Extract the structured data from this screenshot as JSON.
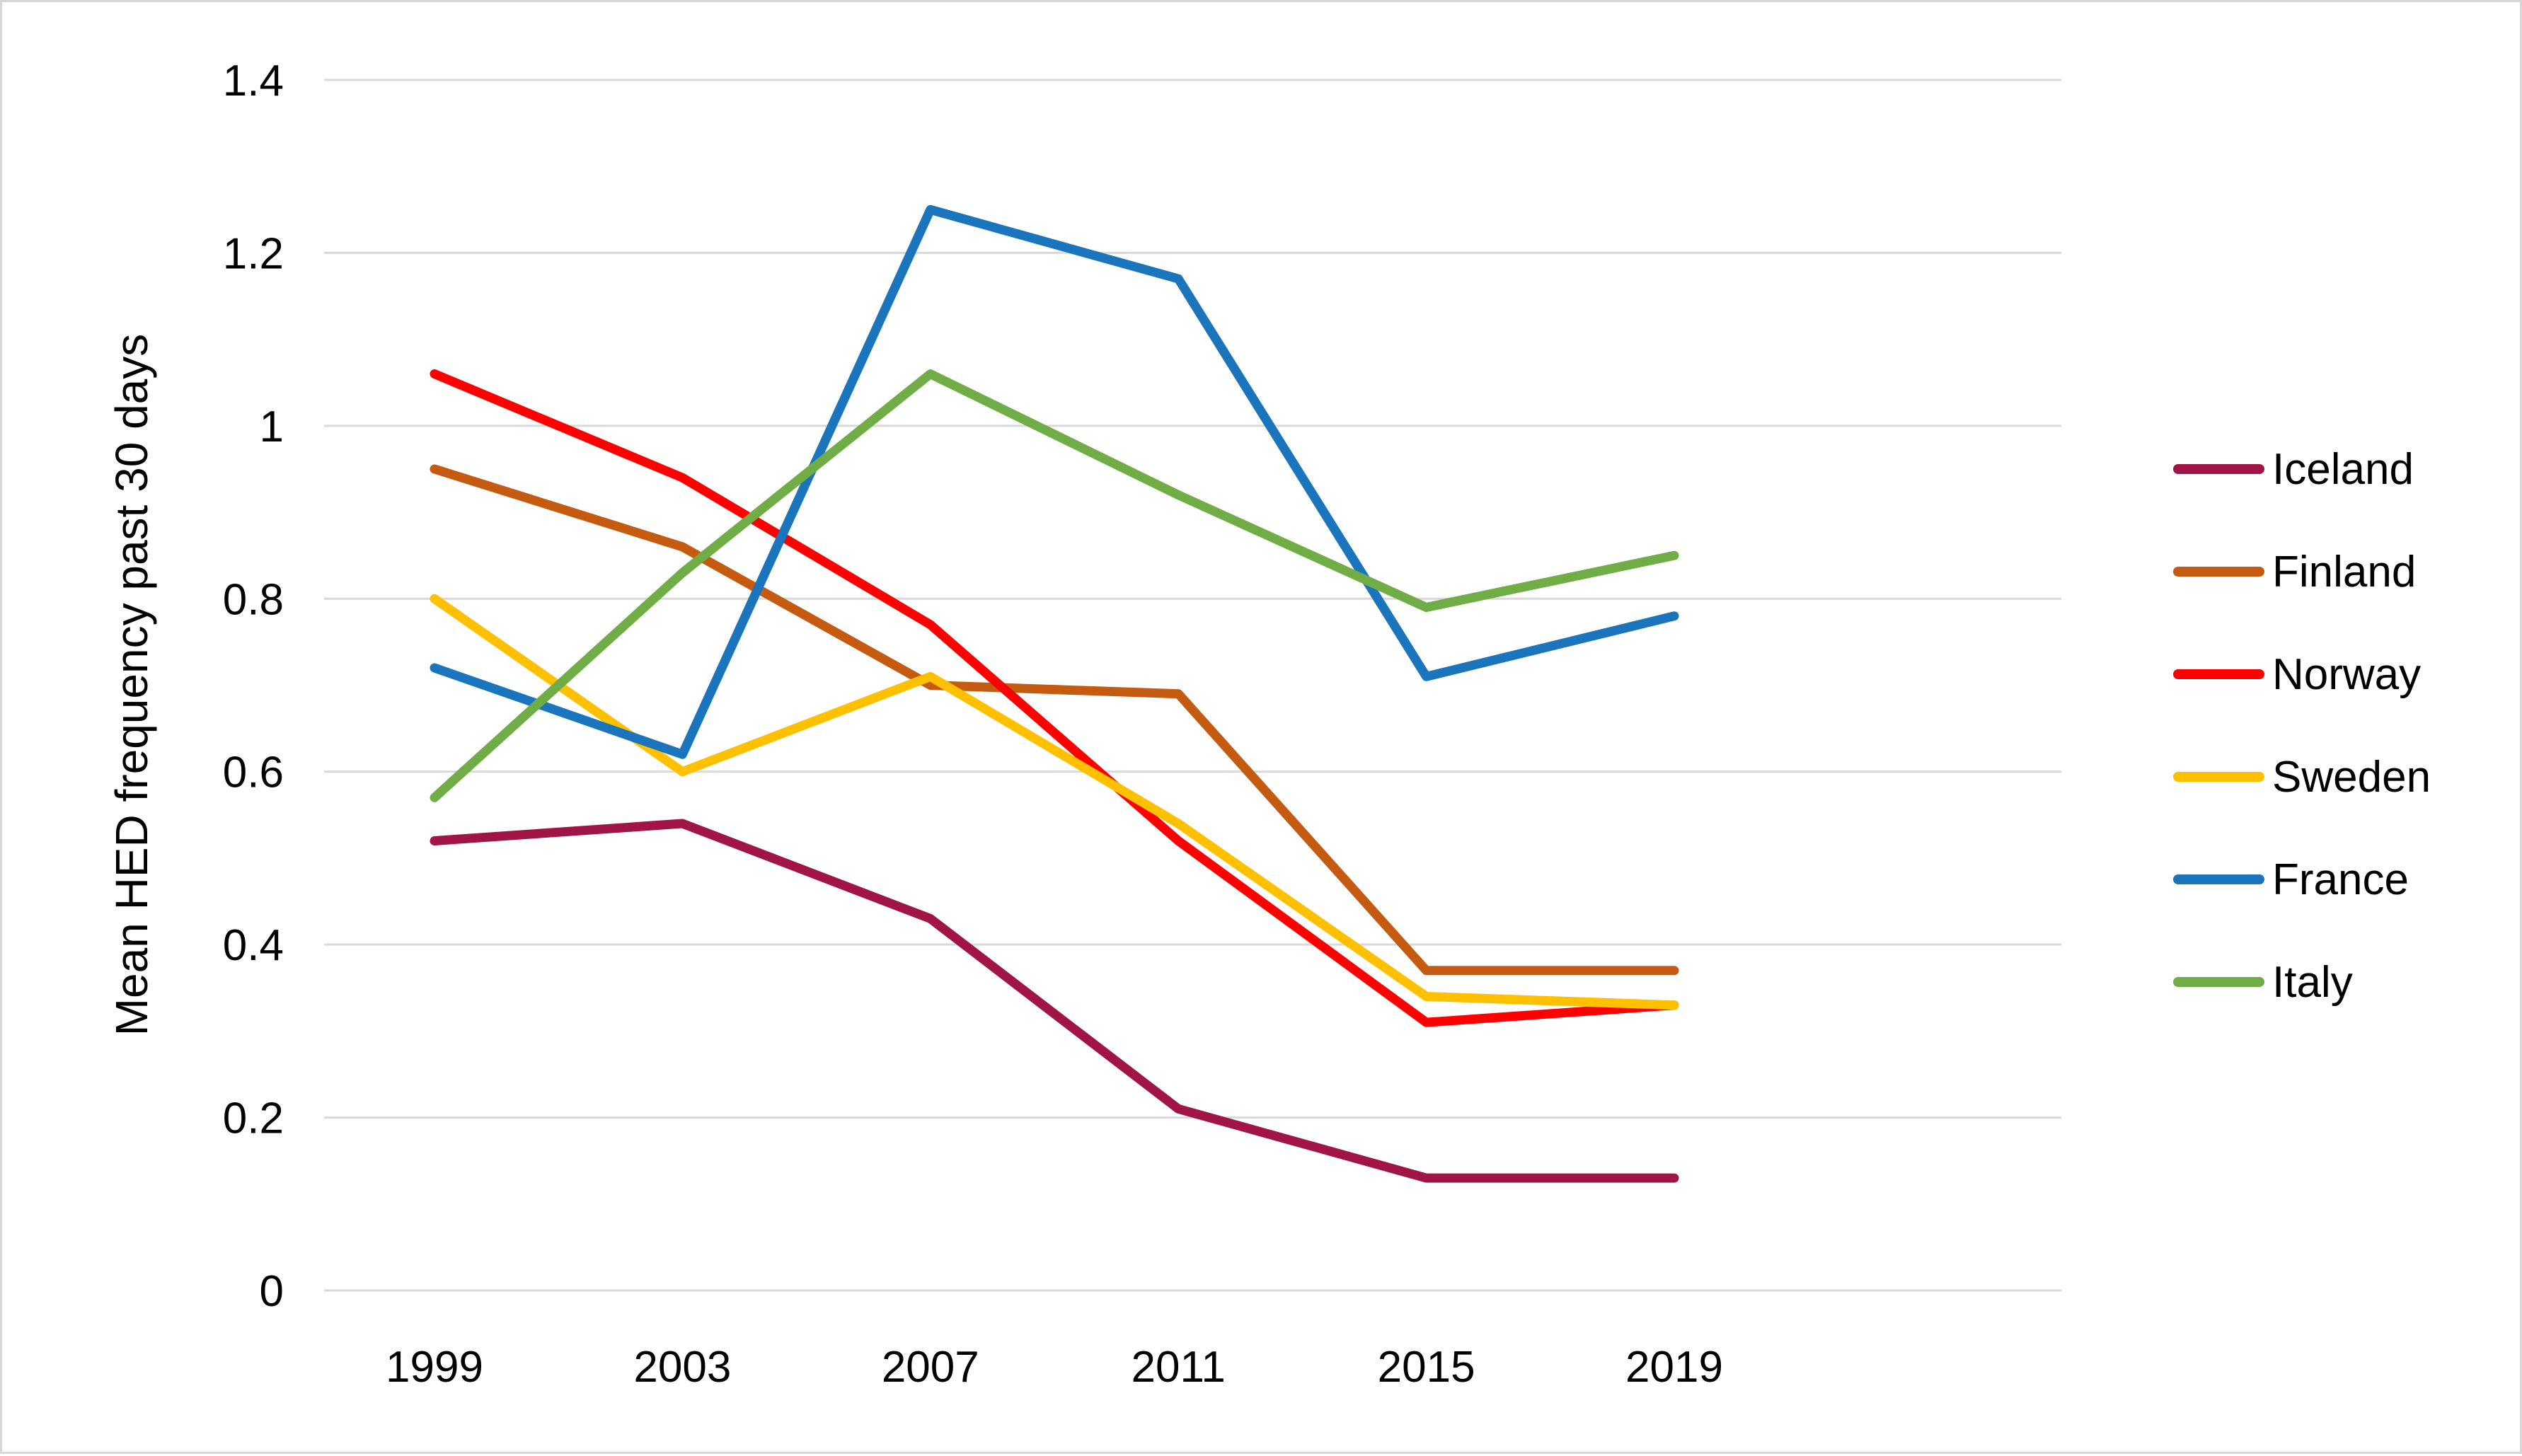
{
  "chart_data": {
    "type": "line",
    "title": "",
    "xlabel": "",
    "ylabel": "Mean HED frequency past 30 days",
    "x": [
      1999,
      2003,
      2007,
      2011,
      2015,
      2019
    ],
    "x_tick_labels": [
      "1999",
      "2003",
      "2007",
      "2011",
      "2015",
      "2019"
    ],
    "y_ticks": [
      0,
      0.2,
      0.4,
      0.6,
      0.8,
      1,
      1.2,
      1.4
    ],
    "y_tick_labels": [
      "0",
      "0.2",
      "0.4",
      "0.6",
      "0.8",
      "1",
      "1.2",
      "1.4"
    ],
    "ylim": [
      0,
      1.4
    ],
    "grid": true,
    "gridline_color": "#D9D9D9",
    "background_color": "#FFFFFF",
    "text_color": "#000000",
    "legend_position": "right",
    "legend": [
      "Iceland",
      "Finland",
      "Norway",
      "Sweden",
      "France",
      "Italy"
    ],
    "series": [
      {
        "name": "Iceland",
        "color": "#A01446",
        "values": [
          0.52,
          0.54,
          0.43,
          0.21,
          0.13,
          0.13
        ]
      },
      {
        "name": "Finland",
        "color": "#C55A11",
        "values": [
          0.95,
          0.86,
          0.7,
          0.69,
          0.37,
          0.37
        ]
      },
      {
        "name": "Norway",
        "color": "#FF0000",
        "values": [
          1.06,
          0.94,
          0.77,
          0.52,
          0.31,
          0.33
        ]
      },
      {
        "name": "Sweden",
        "color": "#FFC000",
        "values": [
          0.8,
          0.6,
          0.71,
          0.54,
          0.34,
          0.33
        ]
      },
      {
        "name": "France",
        "color": "#1B75BC",
        "values": [
          0.72,
          0.62,
          1.25,
          1.17,
          0.71,
          0.78
        ]
      },
      {
        "name": "Italy",
        "color": "#70AD47",
        "values": [
          0.57,
          0.83,
          1.06,
          0.92,
          0.79,
          0.85
        ]
      }
    ]
  }
}
